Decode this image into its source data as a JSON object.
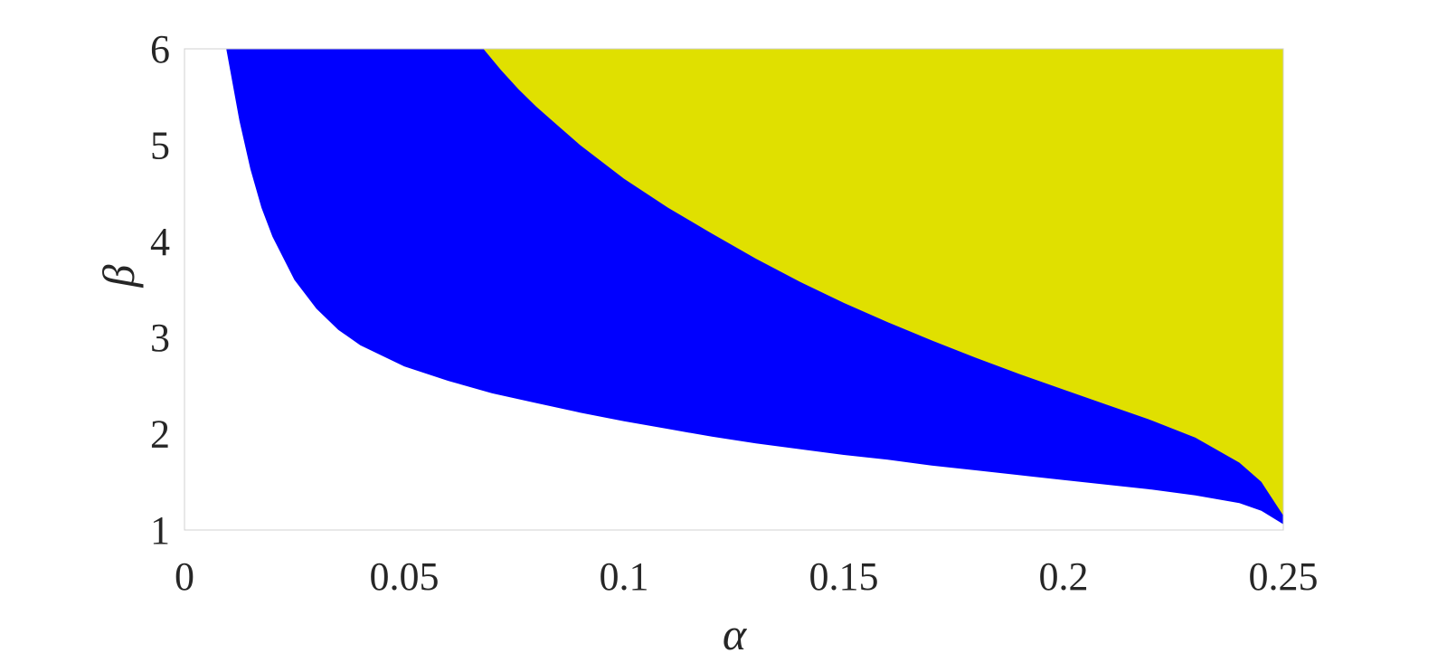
{
  "chart_data": {
    "type": "area",
    "xlabel": "α",
    "ylabel": "β",
    "xlim": [
      0,
      0.25
    ],
    "ylim": [
      1,
      6
    ],
    "x_ticks": [
      "0",
      "0.05",
      "0.1",
      "0.15",
      "0.2",
      "0.25"
    ],
    "y_ticks": [
      "1",
      "2",
      "3",
      "4",
      "5",
      "6"
    ],
    "grid": false,
    "legend": "none",
    "regions": [
      {
        "color": "#0000ff",
        "lower_boundary": {
          "x": [
            0.0095,
            0.0125,
            0.015,
            0.0175,
            0.02,
            0.025,
            0.03,
            0.035,
            0.04,
            0.05,
            0.06,
            0.07,
            0.08,
            0.09,
            0.1,
            0.11,
            0.12,
            0.13,
            0.14,
            0.15,
            0.16,
            0.17,
            0.18,
            0.19,
            0.2,
            0.21,
            0.22,
            0.23,
            0.24,
            0.245,
            0.25
          ],
          "y": [
            6.0,
            5.25,
            4.75,
            4.35,
            4.05,
            3.6,
            3.3,
            3.08,
            2.92,
            2.7,
            2.55,
            2.42,
            2.32,
            2.22,
            2.13,
            2.05,
            1.97,
            1.9,
            1.84,
            1.78,
            1.73,
            1.67,
            1.62,
            1.57,
            1.52,
            1.47,
            1.42,
            1.36,
            1.28,
            1.2,
            1.06
          ]
        }
      },
      {
        "color": "#e0e000",
        "lower_boundary": {
          "x": [
            0.068,
            0.072,
            0.076,
            0.08,
            0.085,
            0.09,
            0.1,
            0.11,
            0.12,
            0.13,
            0.14,
            0.15,
            0.16,
            0.17,
            0.18,
            0.19,
            0.2,
            0.21,
            0.22,
            0.23,
            0.24,
            0.245,
            0.25
          ],
          "y": [
            6.0,
            5.78,
            5.58,
            5.4,
            5.2,
            5.0,
            4.65,
            4.35,
            4.08,
            3.82,
            3.58,
            3.36,
            3.16,
            2.97,
            2.79,
            2.62,
            2.46,
            2.3,
            2.14,
            1.96,
            1.7,
            1.5,
            1.15
          ]
        }
      }
    ]
  }
}
